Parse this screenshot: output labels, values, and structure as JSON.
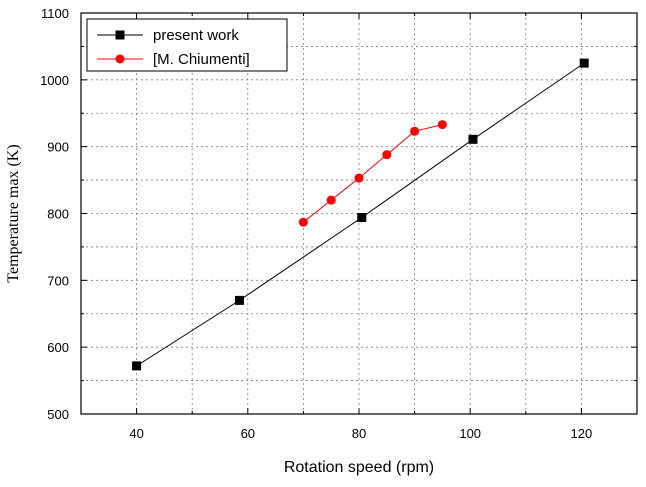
{
  "chart_data": {
    "type": "line",
    "xlabel": "Rotation speed (rpm)",
    "ylabel": "Temperature max (K)",
    "xlim": [
      30,
      130
    ],
    "ylim": [
      500,
      1100
    ],
    "x_ticks": [
      40,
      60,
      80,
      100,
      120
    ],
    "y_ticks": [
      500,
      600,
      700,
      800,
      900,
      1000,
      1100
    ],
    "grid": true,
    "legend_position": "top-left",
    "series": [
      {
        "name": "present work",
        "color": "#000000",
        "marker": "square",
        "x": [
          40,
          58.5,
          80.5,
          100.5,
          120.5
        ],
        "y": [
          572,
          670,
          794,
          911,
          1025
        ]
      },
      {
        "name": "[M. Chiumenti]",
        "color": "#ff0000",
        "marker": "circle",
        "x": [
          70,
          75,
          80,
          85,
          90,
          95
        ],
        "y": [
          787,
          820,
          853,
          888,
          923,
          933
        ]
      }
    ]
  }
}
